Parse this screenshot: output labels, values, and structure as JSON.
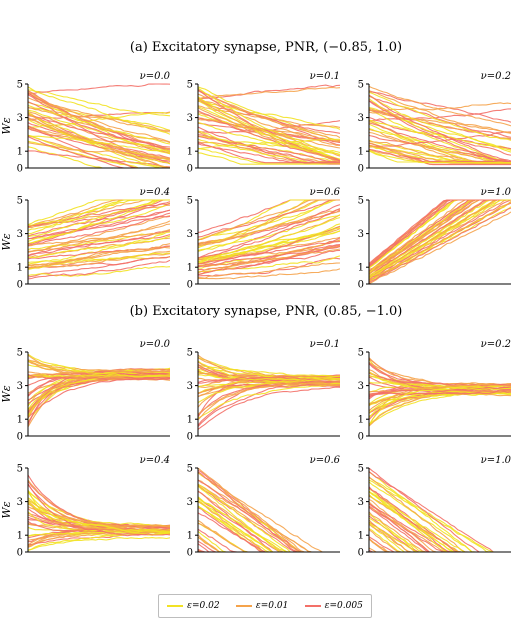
{
  "sections": [
    {
      "title": "(a) Excitatory synapse, PNR, (−0.85, 1.0)"
    },
    {
      "title": "(b) Excitatory synapse, PNR, (0.85, −1.0)"
    }
  ],
  "legend": [
    {
      "label": "ε=0.02",
      "color": "#f2e224"
    },
    {
      "label": "ε=0.01",
      "color": "#f5a34b"
    },
    {
      "label": "ε=0.005",
      "color": "#f37068"
    }
  ],
  "chart_data": [
    {
      "type": "line",
      "section": "a",
      "panel_title": "ν=0.0",
      "ylabel": "Wε",
      "yticks": [
        0,
        1,
        3,
        5
      ],
      "ylim": [
        0,
        5
      ],
      "xlim": [
        0,
        1
      ],
      "trend": "decreasing-to-zero"
    },
    {
      "type": "line",
      "section": "a",
      "panel_title": "ν=0.1",
      "ylabel": "",
      "yticks": [
        0,
        1,
        3,
        5
      ],
      "ylim": [
        0,
        5
      ],
      "xlim": [
        0,
        1
      ],
      "trend": "decreasing-to-floor"
    },
    {
      "type": "line",
      "section": "a",
      "panel_title": "ν=0.2",
      "ylabel": "",
      "yticks": [
        0,
        1,
        3,
        5
      ],
      "ylim": [
        0,
        5
      ],
      "xlim": [
        0,
        1
      ],
      "trend": "decreasing-to-floor"
    },
    {
      "type": "line",
      "section": "a",
      "panel_title": "ν=0.4",
      "ylabel": "Wε",
      "yticks": [
        0,
        1,
        3,
        5
      ],
      "ylim": [
        0,
        5
      ],
      "xlim": [
        0,
        1
      ],
      "trend": "increasing"
    },
    {
      "type": "line",
      "section": "a",
      "panel_title": "ν=0.6",
      "ylabel": "",
      "yticks": [
        0,
        1,
        3,
        5
      ],
      "ylim": [
        0,
        5
      ],
      "xlim": [
        0,
        1
      ],
      "trend": "increasing"
    },
    {
      "type": "line",
      "section": "a",
      "panel_title": "ν=1.0",
      "ylabel": "",
      "yticks": [
        0,
        1,
        3,
        5
      ],
      "ylim": [
        0,
        5
      ],
      "xlim": [
        0,
        1
      ],
      "trend": "increasing-to-max"
    },
    {
      "type": "line",
      "section": "b",
      "panel_title": "ν=0.0",
      "ylabel": "Wε",
      "yticks": [
        0,
        1,
        3,
        5
      ],
      "ylim": [
        0,
        5
      ],
      "xlim": [
        0,
        1
      ],
      "trend": "converge",
      "target": 3.7
    },
    {
      "type": "line",
      "section": "b",
      "panel_title": "ν=0.1",
      "ylabel": "",
      "yticks": [
        0,
        1,
        3,
        5
      ],
      "ylim": [
        0,
        5
      ],
      "xlim": [
        0,
        1
      ],
      "trend": "converge",
      "target": 3.3
    },
    {
      "type": "line",
      "section": "b",
      "panel_title": "ν=0.2",
      "ylabel": "",
      "yticks": [
        0,
        1,
        3,
        5
      ],
      "ylim": [
        0,
        5
      ],
      "xlim": [
        0,
        1
      ],
      "trend": "converge",
      "target": 2.8
    },
    {
      "type": "line",
      "section": "b",
      "panel_title": "ν=0.4",
      "ylabel": "Wε",
      "yticks": [
        0,
        1,
        3,
        5
      ],
      "ylim": [
        0,
        5
      ],
      "xlim": [
        0,
        1
      ],
      "trend": "converge",
      "target": 1.3
    },
    {
      "type": "line",
      "section": "b",
      "panel_title": "ν=0.6",
      "ylabel": "",
      "yticks": [
        0,
        1,
        3,
        5
      ],
      "ylim": [
        0,
        5
      ],
      "xlim": [
        0,
        1
      ],
      "trend": "decreasing-linear"
    },
    {
      "type": "line",
      "section": "b",
      "panel_title": "ν=1.0",
      "ylabel": "",
      "yticks": [
        0,
        1,
        3,
        5
      ],
      "ylim": [
        0,
        5
      ],
      "xlim": [
        0,
        1
      ],
      "trend": "decreasing-linear"
    }
  ]
}
